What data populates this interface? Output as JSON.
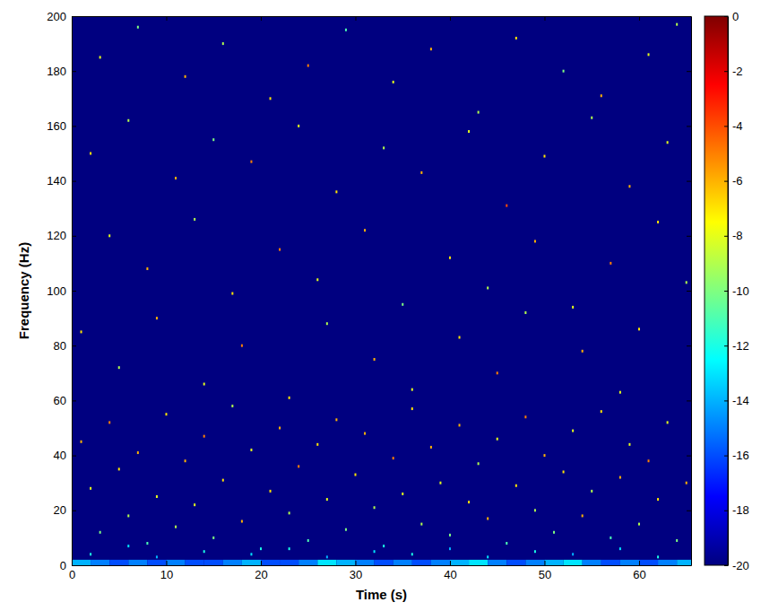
{
  "chart_data": {
    "type": "heatmap",
    "x_label": "Time (s)",
    "y_label": "Frequency (Hz)",
    "xlim": [
      0,
      65.5
    ],
    "xticks": [
      0,
      10,
      20,
      30,
      40,
      50,
      60
    ],
    "ylim": [
      0,
      200
    ],
    "yticks": [
      0,
      20,
      40,
      60,
      80,
      100,
      120,
      140,
      160,
      180,
      200
    ],
    "colorbar": {
      "range": [
        -20,
        0
      ],
      "ticks": [
        0,
        -2,
        -4,
        -6,
        -8,
        -10,
        -12,
        -14,
        -16,
        -18,
        -20
      ]
    },
    "band": {
      "y": [
        0,
        2
      ],
      "x": [
        0,
        2,
        4,
        6,
        8,
        10,
        12,
        14,
        16,
        18,
        20,
        22,
        24,
        26,
        28,
        30,
        32,
        34,
        36,
        38,
        40,
        42,
        44,
        46,
        48,
        50,
        52,
        54,
        56,
        58,
        60,
        62,
        64
      ],
      "values": [
        -14,
        -15,
        -16,
        -15,
        -16,
        -15,
        -16,
        -16,
        -15,
        -14,
        -16,
        -16,
        -15,
        -13,
        -14,
        -15,
        -16,
        -15,
        -16,
        -15,
        -14,
        -13,
        -15,
        -16,
        -15,
        -14,
        -13,
        -15,
        -16,
        -15,
        -16,
        -15,
        -14
      ]
    },
    "cells": {
      "x": [
        3,
        7,
        12,
        16,
        21,
        25,
        29,
        34,
        38,
        43,
        47,
        52,
        56,
        61,
        64,
        2,
        6,
        11,
        15,
        19,
        24,
        28,
        33,
        37,
        42,
        46,
        50,
        55,
        59,
        63,
        4,
        8,
        13,
        17,
        22,
        26,
        31,
        35,
        40,
        44,
        49,
        53,
        57,
        62,
        65,
        1,
        5,
        9,
        14,
        18,
        23,
        27,
        32,
        36,
        41,
        45,
        48,
        54,
        58,
        60,
        1,
        2,
        3,
        4,
        5,
        6,
        7,
        8,
        9,
        10,
        11,
        12,
        13,
        14,
        15,
        16,
        17,
        18,
        19,
        20,
        21,
        22,
        23,
        24,
        25,
        26,
        27,
        28,
        29,
        30,
        31,
        32,
        33,
        34,
        35,
        36,
        37,
        38,
        39,
        40,
        41,
        42,
        43,
        44,
        45,
        46,
        47,
        48,
        49,
        50,
        51,
        52,
        53,
        54,
        55,
        56,
        57,
        58,
        59,
        60,
        61,
        62,
        63,
        64,
        65,
        2,
        6,
        9,
        14,
        19,
        23,
        27,
        32,
        36,
        40,
        44,
        49,
        53,
        58,
        62
      ],
      "y": [
        185,
        196,
        178,
        190,
        170,
        182,
        195,
        176,
        188,
        165,
        192,
        180,
        171,
        186,
        197,
        150,
        162,
        141,
        155,
        147,
        160,
        136,
        152,
        143,
        158,
        131,
        149,
        163,
        138,
        154,
        120,
        108,
        126,
        99,
        115,
        104,
        122,
        95,
        112,
        101,
        118,
        94,
        110,
        125,
        103,
        85,
        72,
        90,
        66,
        80,
        61,
        88,
        75,
        64,
        83,
        70,
        92,
        78,
        63,
        86,
        45,
        28,
        12,
        52,
        35,
        18,
        41,
        8,
        25,
        55,
        14,
        38,
        22,
        47,
        10,
        31,
        58,
        16,
        42,
        6,
        27,
        50,
        19,
        36,
        9,
        44,
        24,
        53,
        13,
        33,
        48,
        21,
        7,
        39,
        26,
        57,
        15,
        43,
        30,
        11,
        51,
        23,
        37,
        17,
        46,
        8,
        29,
        54,
        20,
        40,
        12,
        34,
        49,
        18,
        27,
        56,
        10,
        32,
        44,
        15,
        38,
        24,
        52,
        9,
        30,
        4,
        7,
        3,
        5,
        4,
        6,
        3,
        5,
        4,
        6,
        3,
        5,
        4,
        6,
        3
      ],
      "values": [
        -8,
        -10,
        -6,
        -9,
        -7,
        -5,
        -11,
        -8,
        -6,
        -9,
        -7,
        -10,
        -6,
        -8,
        -9,
        -7,
        -9,
        -6,
        -10,
        -5,
        -8,
        -7,
        -9,
        -6,
        -8,
        -4,
        -7,
        -9,
        -6,
        -8,
        -8,
        -6,
        -9,
        -7,
        -5,
        -8,
        -6,
        -10,
        -7,
        -9,
        -6,
        -8,
        -5,
        -7,
        -9,
        -7,
        -9,
        -6,
        -8,
        -5,
        -7,
        -9,
        -6,
        -8,
        -7,
        -5,
        -9,
        -6,
        -8,
        -7,
        -6,
        -8,
        -10,
        -5,
        -7,
        -9,
        -6,
        -11,
        -8,
        -7,
        -9,
        -6,
        -8,
        -5,
        -10,
        -7,
        -9,
        -6,
        -8,
        -12,
        -7,
        -6,
        -9,
        -5,
        -11,
        -7,
        -8,
        -6,
        -10,
        -7,
        -6,
        -9,
        -12,
        -5,
        -8,
        -7,
        -9,
        -6,
        -8,
        -10,
        -6,
        -7,
        -9,
        -6,
        -8,
        -11,
        -7,
        -5,
        -9,
        -6,
        -10,
        -7,
        -8,
        -6,
        -9,
        -7,
        -11,
        -6,
        -8,
        -9,
        -5,
        -7,
        -8,
        -10,
        -6,
        -12,
        -13,
        -14,
        -12,
        -13,
        -12,
        -14,
        -13,
        -12,
        -14,
        -13,
        -12,
        -14,
        -13,
        -12
      ]
    }
  }
}
